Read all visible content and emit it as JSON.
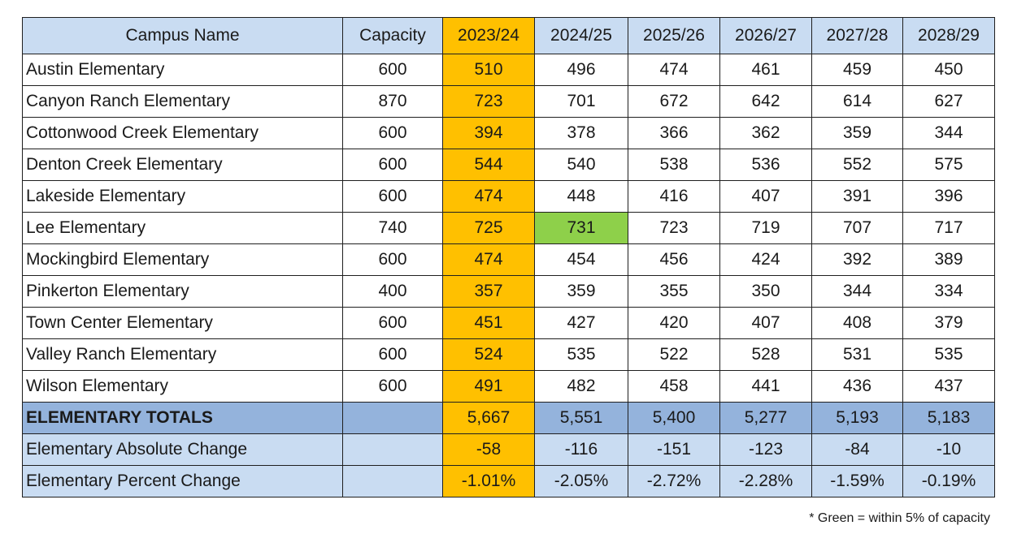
{
  "headers": [
    "Campus Name",
    "Capacity",
    "2023/24",
    "2024/25",
    "2025/26",
    "2026/27",
    "2027/28",
    "2028/29"
  ],
  "rows": [
    {
      "name": "Austin Elementary",
      "capacity": "600",
      "values": [
        "510",
        "496",
        "474",
        "461",
        "459",
        "450"
      ]
    },
    {
      "name": "Canyon Ranch Elementary",
      "capacity": "870",
      "values": [
        "723",
        "701",
        "672",
        "642",
        "614",
        "627"
      ]
    },
    {
      "name": "Cottonwood Creek Elementary",
      "capacity": "600",
      "values": [
        "394",
        "378",
        "366",
        "362",
        "359",
        "344"
      ]
    },
    {
      "name": "Denton Creek Elementary",
      "capacity": "600",
      "values": [
        "544",
        "540",
        "538",
        "536",
        "552",
        "575"
      ]
    },
    {
      "name": "Lakeside Elementary",
      "capacity": "600",
      "values": [
        "474",
        "448",
        "416",
        "407",
        "391",
        "396"
      ]
    },
    {
      "name": "Lee Elementary",
      "capacity": "740",
      "values": [
        "725",
        "731",
        "723",
        "719",
        "707",
        "717"
      ]
    },
    {
      "name": "Mockingbird Elementary",
      "capacity": "600",
      "values": [
        "474",
        "454",
        "456",
        "424",
        "392",
        "389"
      ]
    },
    {
      "name": "Pinkerton Elementary",
      "capacity": "400",
      "values": [
        "357",
        "359",
        "355",
        "350",
        "344",
        "334"
      ]
    },
    {
      "name": "Town Center Elementary",
      "capacity": "600",
      "values": [
        "451",
        "427",
        "420",
        "407",
        "408",
        "379"
      ]
    },
    {
      "name": "Valley Ranch Elementary",
      "capacity": "600",
      "values": [
        "524",
        "535",
        "522",
        "528",
        "531",
        "535"
      ]
    },
    {
      "name": "Wilson Elementary",
      "capacity": "600",
      "values": [
        "491",
        "482",
        "458",
        "441",
        "436",
        "437"
      ]
    }
  ],
  "totals": {
    "name": "ELEMENTARY TOTALS",
    "capacity": "",
    "values": [
      "5,667",
      "5,551",
      "5,400",
      "5,277",
      "5,193",
      "5,183"
    ]
  },
  "absolute_change": {
    "name": "Elementary Absolute Change",
    "capacity": "",
    "values": [
      "-58",
      "-116",
      "-151",
      "-123",
      "-84",
      "-10"
    ]
  },
  "percent_change": {
    "name": "Elementary Percent Change",
    "capacity": "",
    "values": [
      "-1.01%",
      "-2.05%",
      "-2.72%",
      "-2.28%",
      "-1.59%",
      "-0.19%"
    ]
  },
  "highlights": {
    "current_year_column": "2023/24",
    "current_year_color": "#ffc000",
    "within_capacity_color": "#8ed04a",
    "within_capacity_cells": [
      {
        "campus": "Lee Elementary",
        "year": "2024/25"
      }
    ]
  },
  "footnote": "* Green = within 5% of capacity"
}
